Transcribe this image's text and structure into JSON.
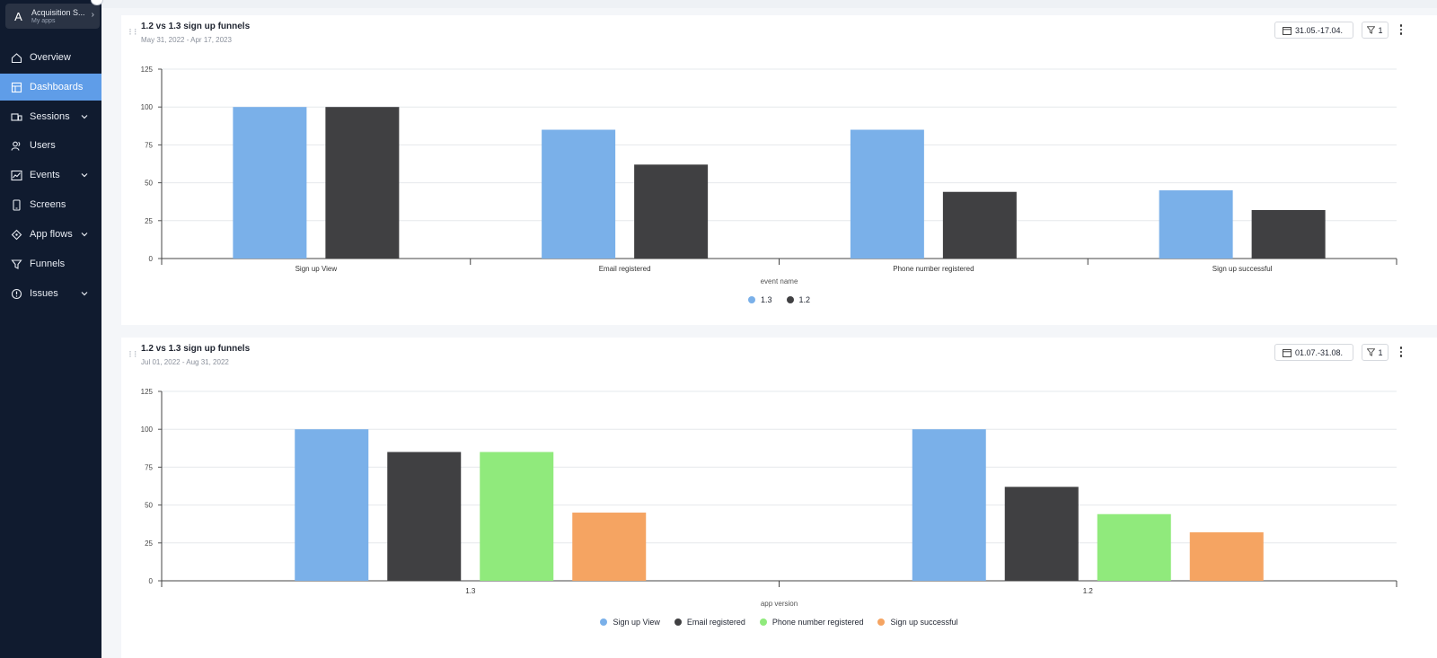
{
  "app": {
    "avatar_letter": "A",
    "name": "Acquisition S...",
    "subtitle": "My apps"
  },
  "sidebar": {
    "items": [
      {
        "label": "Overview",
        "icon": "home-icon",
        "active": false,
        "has_children": false
      },
      {
        "label": "Dashboards",
        "icon": "dashboard-icon",
        "active": true,
        "has_children": false
      },
      {
        "label": "Sessions",
        "icon": "sessions-icon",
        "active": false,
        "has_children": true
      },
      {
        "label": "Users",
        "icon": "users-icon",
        "active": false,
        "has_children": false
      },
      {
        "label": "Events",
        "icon": "events-icon",
        "active": false,
        "has_children": true
      },
      {
        "label": "Screens",
        "icon": "screens-icon",
        "active": false,
        "has_children": false
      },
      {
        "label": "App flows",
        "icon": "app-flows-icon",
        "active": false,
        "has_children": true
      },
      {
        "label": "Funnels",
        "icon": "funnels-icon",
        "active": false,
        "has_children": false
      },
      {
        "label": "Issues",
        "icon": "issues-icon",
        "active": false,
        "has_children": true
      }
    ]
  },
  "colors": {
    "accent": "#5f9de8",
    "sidebar_bg": "#101b2f",
    "blue": "#7ab0e9",
    "dark": "#404042",
    "green": "#90ea7c",
    "orange": "#f5a462"
  },
  "cards": [
    {
      "title": "1.2 vs 1.3 sign up funnels",
      "subtitle": "May 31, 2022 - Apr 17, 2023",
      "date_range": "31.05.-17.04.",
      "filter_count": "1"
    },
    {
      "title": "1.2 vs 1.3 sign up funnels",
      "subtitle": "Jul 01, 2022 - Aug 31, 2022",
      "date_range": "01.07.-31.08.",
      "filter_count": "1"
    }
  ],
  "chart_data": [
    {
      "type": "bar",
      "categories": [
        "Sign up View",
        "Email registered",
        "Phone number registered",
        "Sign up successful"
      ],
      "series": [
        {
          "name": "1.3",
          "values": [
            100,
            85,
            85,
            45
          ],
          "color": "#7ab0e9"
        },
        {
          "name": "1.2",
          "values": [
            100,
            62,
            44,
            32
          ],
          "color": "#404042"
        }
      ],
      "xlabel": "event name",
      "ylabel": "",
      "ylim": [
        0,
        125
      ],
      "yticks": [
        "0",
        "25",
        "50",
        "75",
        "100",
        "125"
      ],
      "grid": true,
      "legend": "bottom-center"
    },
    {
      "type": "bar",
      "categories": [
        "1.3",
        "1.2"
      ],
      "series": [
        {
          "name": "Sign up View",
          "values": [
            100,
            100
          ],
          "color": "#7ab0e9"
        },
        {
          "name": "Email registered",
          "values": [
            85,
            62
          ],
          "color": "#404042"
        },
        {
          "name": "Phone number registered",
          "values": [
            85,
            44
          ],
          "color": "#90ea7c"
        },
        {
          "name": "Sign up successful",
          "values": [
            45,
            32
          ],
          "color": "#f5a462"
        }
      ],
      "xlabel": "app version",
      "ylabel": "",
      "ylim": [
        0,
        125
      ],
      "yticks": [
        "0",
        "25",
        "50",
        "75",
        "100",
        "125"
      ],
      "grid": true,
      "legend": "bottom-center"
    }
  ]
}
